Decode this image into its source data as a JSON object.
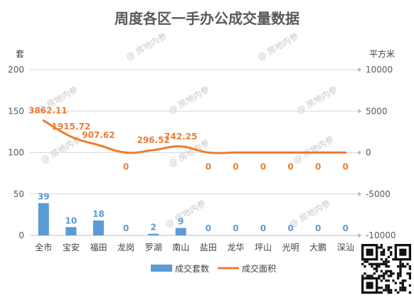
{
  "chart_data": {
    "type": "bar",
    "title": "周度各区一手办公成交量数据",
    "left_unit": "套",
    "right_unit": "平方米",
    "categories": [
      "全市",
      "宝安",
      "福田",
      "龙岗",
      "罗湖",
      "南山",
      "盐田",
      "龙华",
      "坪山",
      "光明",
      "大鹏",
      "深汕"
    ],
    "series": [
      {
        "name": "成交套数",
        "type": "bar",
        "axis": "left",
        "color": "#5b9bd5",
        "values": [
          39,
          10,
          18,
          0,
          2,
          9,
          0,
          0,
          0,
          0,
          0,
          0
        ],
        "labels": [
          "39",
          "10",
          "18",
          "0",
          "2",
          "9",
          "0",
          "0",
          "0",
          "0",
          "0",
          "0"
        ]
      },
      {
        "name": "成交面积",
        "type": "line",
        "axis": "right",
        "smooth": true,
        "color": "#ed7d31",
        "values": [
          3862.11,
          1915.72,
          907.62,
          0,
          296.52,
          742.25,
          0,
          0,
          0,
          0,
          0,
          0
        ],
        "labels": [
          "3862.11",
          "1915.72",
          "907.62",
          "0",
          "296.52",
          "742.25",
          "0",
          "0",
          "0",
          "0",
          "0",
          "0"
        ]
      }
    ],
    "y_left": {
      "min": 0,
      "max": 200,
      "ticks": [
        0,
        50,
        100,
        150,
        200
      ]
    },
    "y_right": {
      "min": -10000,
      "max": 10000,
      "ticks": [
        -10000,
        -5000,
        0,
        5000,
        10000
      ]
    },
    "grid": true,
    "legend_position": "bottom"
  },
  "watermark_text": "@ 房地内参"
}
